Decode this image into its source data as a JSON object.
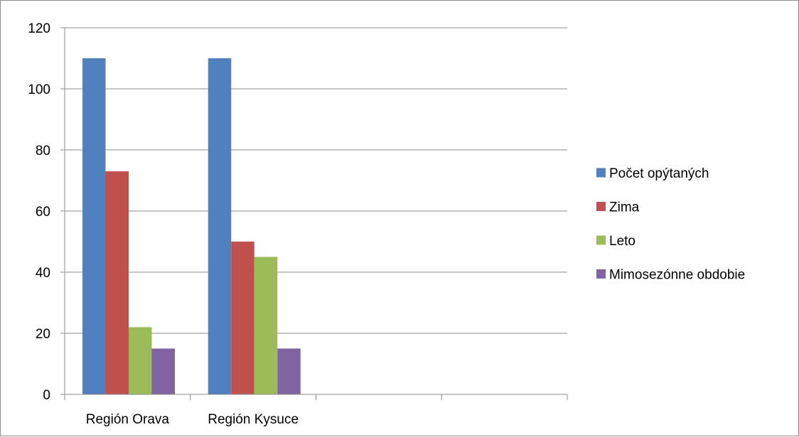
{
  "chart_data": {
    "type": "bar",
    "title": "",
    "xlabel": "",
    "ylabel": "",
    "categories": [
      "Región Orava",
      "Región Kysuce",
      "",
      ""
    ],
    "series": [
      {
        "name": "Počet opýtaných",
        "color": "#4F81BD",
        "values": [
          110,
          110,
          null,
          null
        ]
      },
      {
        "name": "Zima",
        "color": "#C0504D",
        "values": [
          73,
          50,
          null,
          null
        ]
      },
      {
        "name": "Leto",
        "color": "#9BBB59",
        "values": [
          22,
          45,
          null,
          null
        ]
      },
      {
        "name": "Mimosezónne obdobie",
        "color": "#8064A2",
        "values": [
          15,
          15,
          null,
          null
        ]
      }
    ],
    "ylim": [
      0,
      120
    ],
    "yticks": [
      0,
      20,
      40,
      60,
      80,
      100,
      120
    ],
    "grid": true,
    "legend_position": "right"
  }
}
